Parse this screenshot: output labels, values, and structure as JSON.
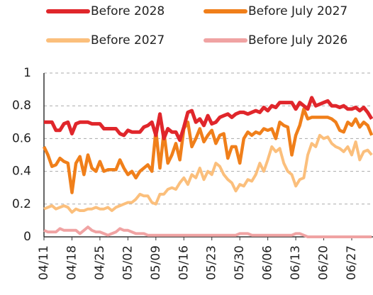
{
  "chart_data": {
    "type": "line",
    "categories": [
      "04/11",
      null,
      null,
      null,
      null,
      null,
      null,
      "04/18",
      null,
      null,
      null,
      null,
      null,
      null,
      "04/25",
      null,
      null,
      null,
      null,
      null,
      null,
      "05/02",
      null,
      null,
      null,
      null,
      null,
      null,
      "05/09",
      null,
      null,
      null,
      null,
      null,
      null,
      "05/16",
      null,
      null,
      null,
      null,
      null,
      null,
      "05/23",
      null,
      null,
      null,
      null,
      null,
      null,
      "05/30",
      null,
      null,
      null,
      null,
      null,
      null,
      "06/06",
      null,
      null,
      null,
      null,
      null,
      null,
      "06/13",
      null,
      null,
      null,
      null,
      null,
      null,
      "06/20",
      null,
      null,
      null,
      null,
      null,
      null,
      "06/27",
      null,
      null,
      null,
      null,
      null
    ],
    "series": [
      {
        "name": "Before 2028",
        "color": "#e0262b",
        "values": [
          0.7,
          0.7,
          0.7,
          0.65,
          0.65,
          0.69,
          0.7,
          0.63,
          0.69,
          0.7,
          0.7,
          0.7,
          0.69,
          0.69,
          0.69,
          0.66,
          0.66,
          0.66,
          0.66,
          0.63,
          0.62,
          0.65,
          0.64,
          0.64,
          0.64,
          0.67,
          0.68,
          0.7,
          0.62,
          0.75,
          0.6,
          0.66,
          0.64,
          0.64,
          0.59,
          0.67,
          0.76,
          0.77,
          0.7,
          0.72,
          0.68,
          0.74,
          0.69,
          0.7,
          0.73,
          0.74,
          0.75,
          0.73,
          0.75,
          0.76,
          0.76,
          0.75,
          0.76,
          0.77,
          0.76,
          0.79,
          0.77,
          0.8,
          0.79,
          0.82,
          0.82,
          0.82,
          0.82,
          0.78,
          0.82,
          0.8,
          0.78,
          0.85,
          0.8,
          0.81,
          0.82,
          0.83,
          0.8,
          0.8,
          0.79,
          0.8,
          0.78,
          0.78,
          0.79,
          0.77,
          0.79,
          0.76,
          0.72
        ]
      },
      {
        "name": "Before July 2027",
        "color": "#f07f1a",
        "values": [
          0.55,
          0.5,
          0.43,
          0.44,
          0.48,
          0.46,
          0.45,
          0.27,
          0.45,
          0.49,
          0.38,
          0.5,
          0.42,
          0.4,
          0.46,
          0.4,
          0.41,
          0.41,
          0.41,
          0.47,
          0.42,
          0.38,
          0.4,
          0.36,
          0.4,
          0.42,
          0.44,
          0.4,
          0.65,
          0.42,
          0.64,
          0.45,
          0.5,
          0.57,
          0.47,
          0.66,
          0.7,
          0.55,
          0.6,
          0.66,
          0.58,
          0.62,
          0.65,
          0.57,
          0.62,
          0.63,
          0.48,
          0.55,
          0.55,
          0.45,
          0.6,
          0.64,
          0.62,
          0.64,
          0.63,
          0.66,
          0.65,
          0.66,
          0.6,
          0.7,
          0.68,
          0.67,
          0.5,
          0.62,
          0.68,
          0.78,
          0.72,
          0.73,
          0.73,
          0.73,
          0.73,
          0.73,
          0.72,
          0.7,
          0.65,
          0.64,
          0.7,
          0.68,
          0.72,
          0.67,
          0.7,
          0.68,
          0.62
        ]
      },
      {
        "name": "Before 2027",
        "color": "#fbbf7c",
        "values": [
          0.17,
          0.18,
          0.19,
          0.17,
          0.18,
          0.19,
          0.18,
          0.15,
          0.17,
          0.16,
          0.16,
          0.17,
          0.17,
          0.18,
          0.17,
          0.17,
          0.18,
          0.16,
          0.18,
          0.19,
          0.2,
          0.21,
          0.21,
          0.23,
          0.26,
          0.25,
          0.25,
          0.21,
          0.2,
          0.26,
          0.26,
          0.29,
          0.3,
          0.29,
          0.33,
          0.36,
          0.32,
          0.38,
          0.36,
          0.42,
          0.35,
          0.4,
          0.38,
          0.45,
          0.43,
          0.38,
          0.35,
          0.33,
          0.28,
          0.32,
          0.31,
          0.35,
          0.34,
          0.38,
          0.45,
          0.4,
          0.47,
          0.55,
          0.52,
          0.54,
          0.45,
          0.4,
          0.38,
          0.31,
          0.35,
          0.36,
          0.5,
          0.57,
          0.55,
          0.62,
          0.6,
          0.61,
          0.57,
          0.55,
          0.54,
          0.52,
          0.55,
          0.5,
          0.58,
          0.47,
          0.52,
          0.53,
          0.5
        ]
      },
      {
        "name": "Before July 2026",
        "color": "#f0a3a3",
        "values": [
          0.04,
          0.03,
          0.03,
          0.03,
          0.05,
          0.04,
          0.04,
          0.04,
          0.04,
          0.02,
          0.04,
          0.06,
          0.04,
          0.03,
          0.03,
          0.02,
          0.01,
          0.02,
          0.03,
          0.05,
          0.04,
          0.04,
          0.03,
          0.02,
          0.02,
          0.02,
          0.01,
          0.01,
          0.01,
          0.01,
          0.01,
          0.01,
          0.01,
          0.01,
          0.01,
          0.01,
          0.01,
          0.01,
          0.01,
          0.01,
          0.01,
          0.01,
          0.01,
          0.01,
          0.01,
          0.01,
          0.01,
          0.01,
          0.01,
          0.02,
          0.02,
          0.02,
          0.01,
          0.01,
          0.01,
          0.01,
          0.01,
          0.01,
          0.01,
          0.01,
          0.01,
          0.01,
          0.01,
          0.02,
          0.02,
          0.01,
          0.0,
          0.0,
          0.0,
          0.0,
          0.0,
          0.0,
          0.0,
          0.0,
          0.0,
          0.0,
          0.0,
          0.0,
          0.0,
          0.0,
          0.0,
          0.0,
          0.0
        ]
      }
    ],
    "ylim": [
      0,
      1
    ],
    "yticks": [
      0,
      0.2,
      0.4,
      0.6,
      0.8,
      1
    ],
    "grid": true,
    "legend": "top"
  }
}
